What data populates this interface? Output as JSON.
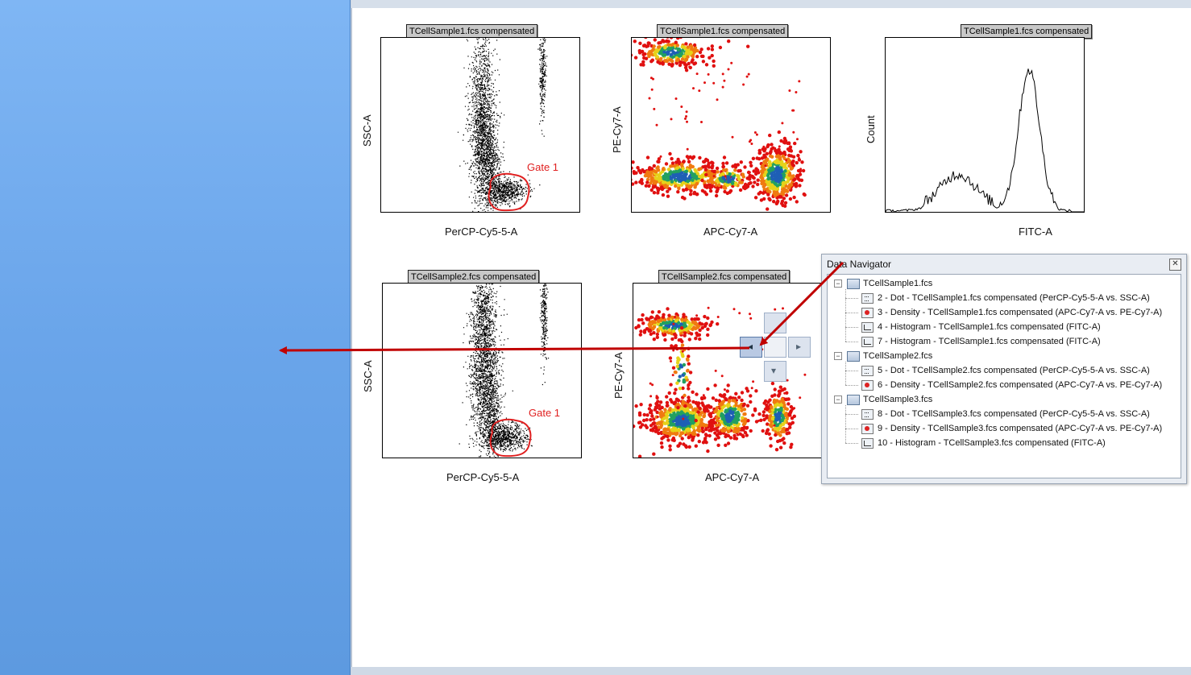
{
  "workspace": {
    "plots": [
      {
        "title": "TCellSample1.fcs compensated",
        "xlabel": "PerCP-Cy5-5-A",
        "ylabel": "SSC-A",
        "gate": "Gate 1"
      },
      {
        "title": "TCellSample1.fcs compensated",
        "xlabel": "APC-Cy7-A",
        "ylabel": "PE-Cy7-A"
      },
      {
        "title": "TCellSample1.fcs compensated",
        "xlabel": "FITC-A",
        "ylabel": "Count"
      },
      {
        "title": "TCellSample2.fcs compensated",
        "xlabel": "PerCP-Cy5-5-A",
        "ylabel": "SSC-A",
        "gate": "Gate 1"
      },
      {
        "title": "TCellSample2.fcs compensated",
        "xlabel": "APC-Cy7-A",
        "ylabel": "PE-Cy7-A"
      }
    ]
  },
  "navigator": {
    "title": "Data Navigator",
    "close_icon": "✕",
    "samples": [
      {
        "name": "TCellSample1.fcs",
        "items": [
          {
            "label": "2 - Dot - TCellSample1.fcs compensated (PerCP-Cy5-5-A vs. SSC-A)",
            "icon": "dot"
          },
          {
            "label": "3 - Density - TCellSample1.fcs compensated (APC-Cy7-A vs. PE-Cy7-A)",
            "icon": "density"
          },
          {
            "label": "4 - Histogram - TCellSample1.fcs compensated (FITC-A)",
            "icon": "hist"
          },
          {
            "label": "7 - Histogram - TCellSample1.fcs compensated (FITC-A)",
            "icon": "hist"
          }
        ]
      },
      {
        "name": "TCellSample2.fcs",
        "items": [
          {
            "label": "5 - Dot - TCellSample2.fcs compensated (PerCP-Cy5-5-A vs. SSC-A)",
            "icon": "dot"
          },
          {
            "label": "6 - Density - TCellSample2.fcs compensated (APC-Cy7-A vs. PE-Cy7-A)",
            "icon": "density"
          }
        ]
      },
      {
        "name": "TCellSample3.fcs",
        "items": [
          {
            "label": "8 - Dot - TCellSample3.fcs compensated (PerCP-Cy5-5-A vs. SSC-A)",
            "icon": "dot"
          },
          {
            "label": "9 - Density - TCellSample3.fcs compensated (APC-Cy7-A vs. PE-Cy7-A)",
            "icon": "density"
          },
          {
            "label": "10 - Histogram - TCellSample3.fcs compensated (FITC-A)",
            "icon": "hist"
          }
        ]
      }
    ]
  },
  "colors": {
    "left_panel": "#6aa5ea",
    "annotation_arrow": "#c00000",
    "gate": "#e02020"
  }
}
